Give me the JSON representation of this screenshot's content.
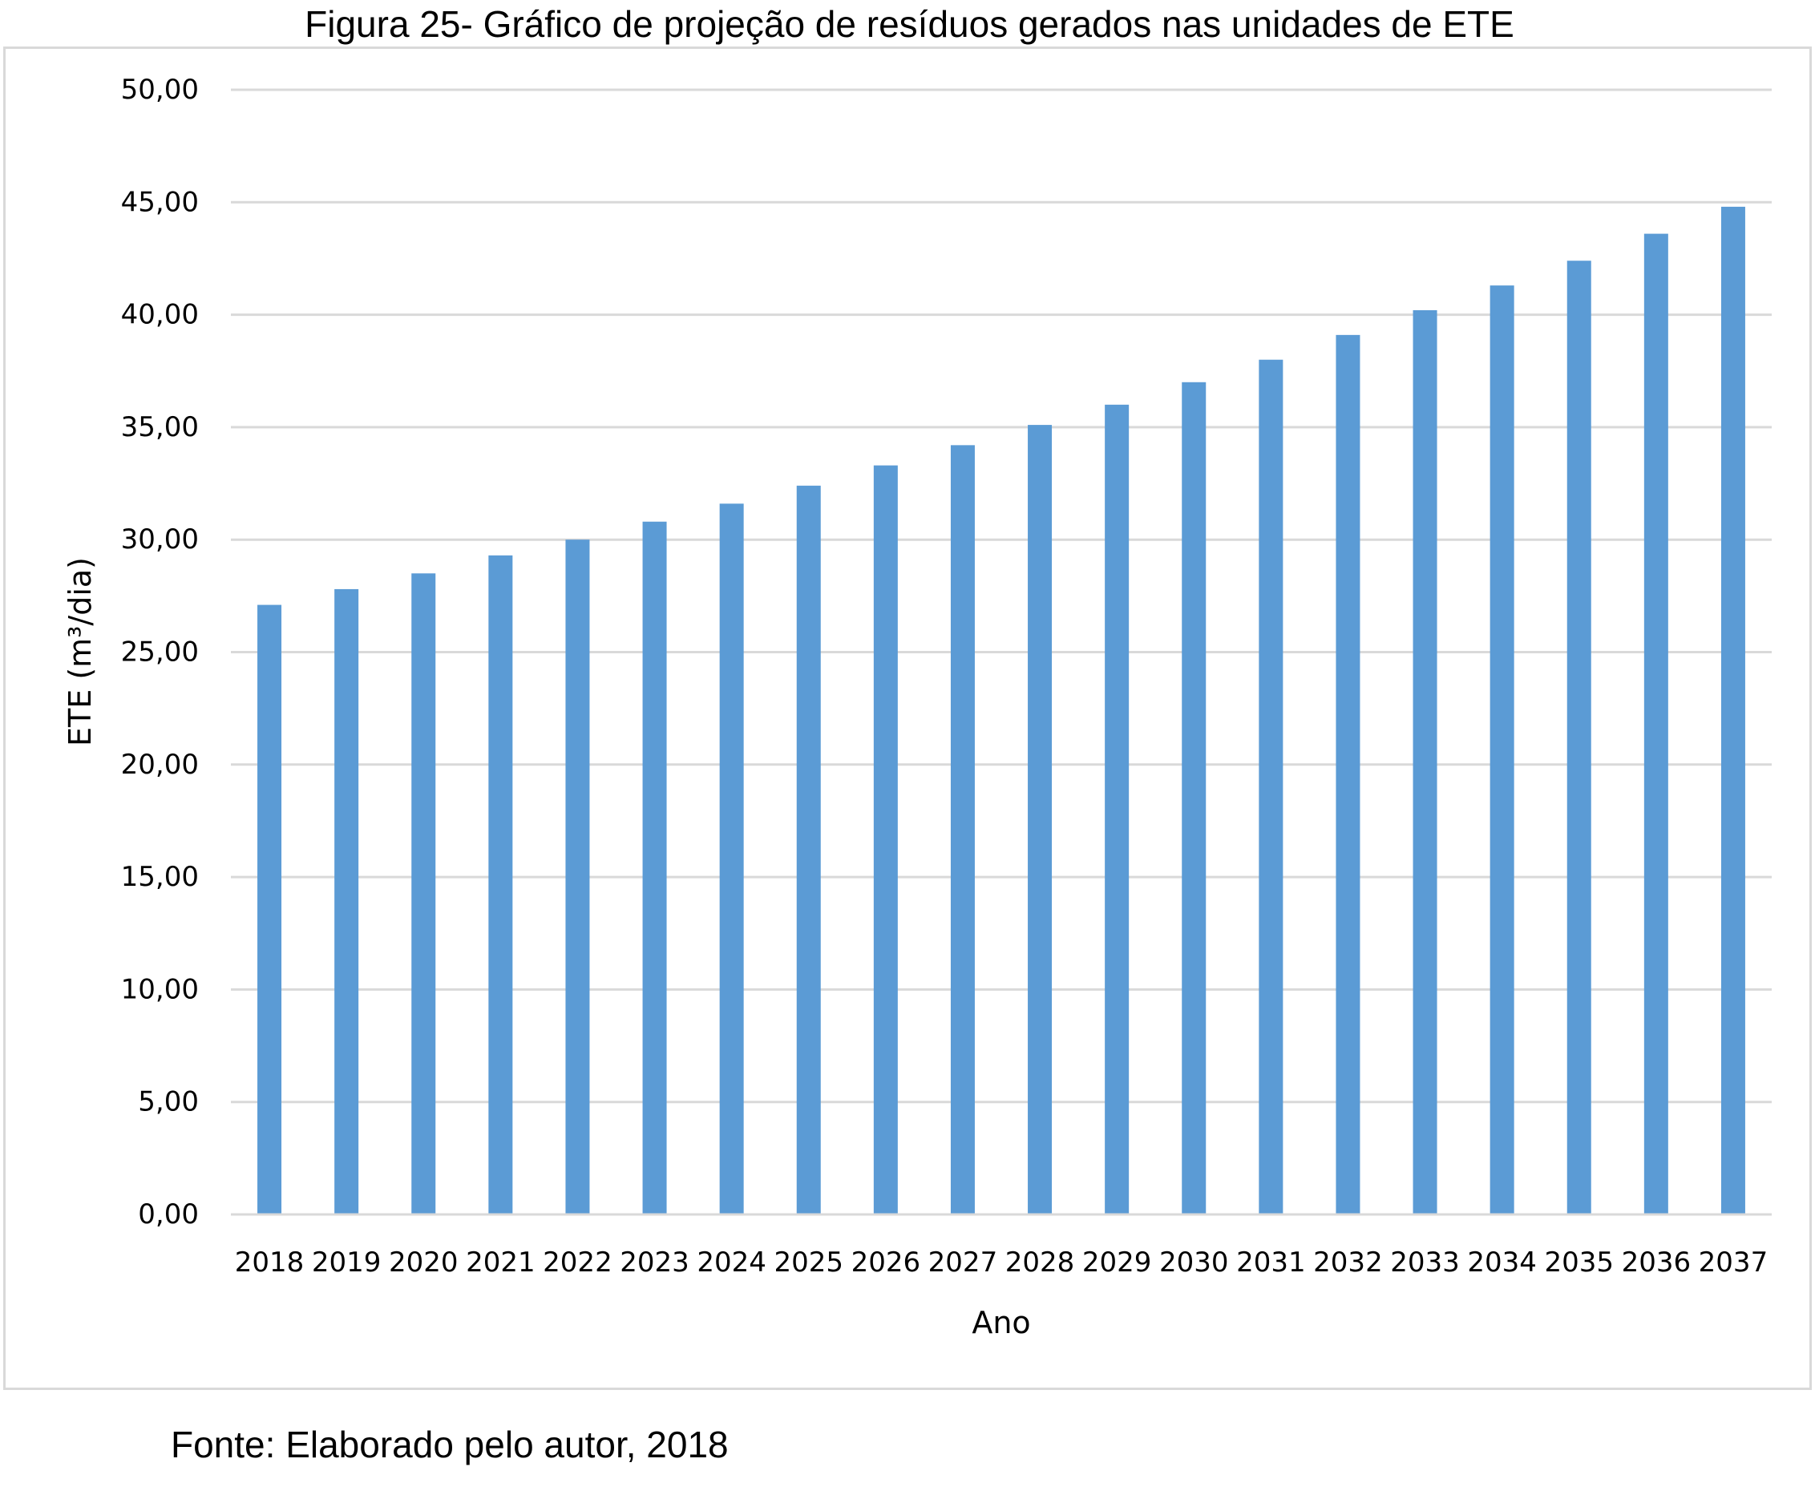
{
  "figure": {
    "title": "Figura 25- Gráfico de projeção de resíduos gerados nas unidades de ETE",
    "source": "Fonte: Elaborado pelo autor, 2018"
  },
  "chart_data": {
    "type": "bar",
    "xlabel": "Ano",
    "ylabel": "ETE (m³/dia)",
    "ylim": [
      0,
      50
    ],
    "yticks": [
      "0,00",
      "5,00",
      "10,00",
      "15,00",
      "20,00",
      "25,00",
      "30,00",
      "35,00",
      "40,00",
      "45,00",
      "50,00"
    ],
    "grid": "horizontal",
    "legend": "none",
    "categories": [
      "2018",
      "2019",
      "2020",
      "2021",
      "2022",
      "2023",
      "2024",
      "2025",
      "2026",
      "2027",
      "2028",
      "2029",
      "2030",
      "2031",
      "2032",
      "2033",
      "2034",
      "2035",
      "2036",
      "2037"
    ],
    "values": [
      27.1,
      27.8,
      28.5,
      29.3,
      30.0,
      30.8,
      31.6,
      32.4,
      33.3,
      34.2,
      35.1,
      36.0,
      37.0,
      38.0,
      39.1,
      40.2,
      41.3,
      42.4,
      43.6,
      44.8
    ],
    "colors": {
      "bar": "#5b9bd5",
      "grid": "#d9d9d9",
      "text": "#000000"
    }
  }
}
